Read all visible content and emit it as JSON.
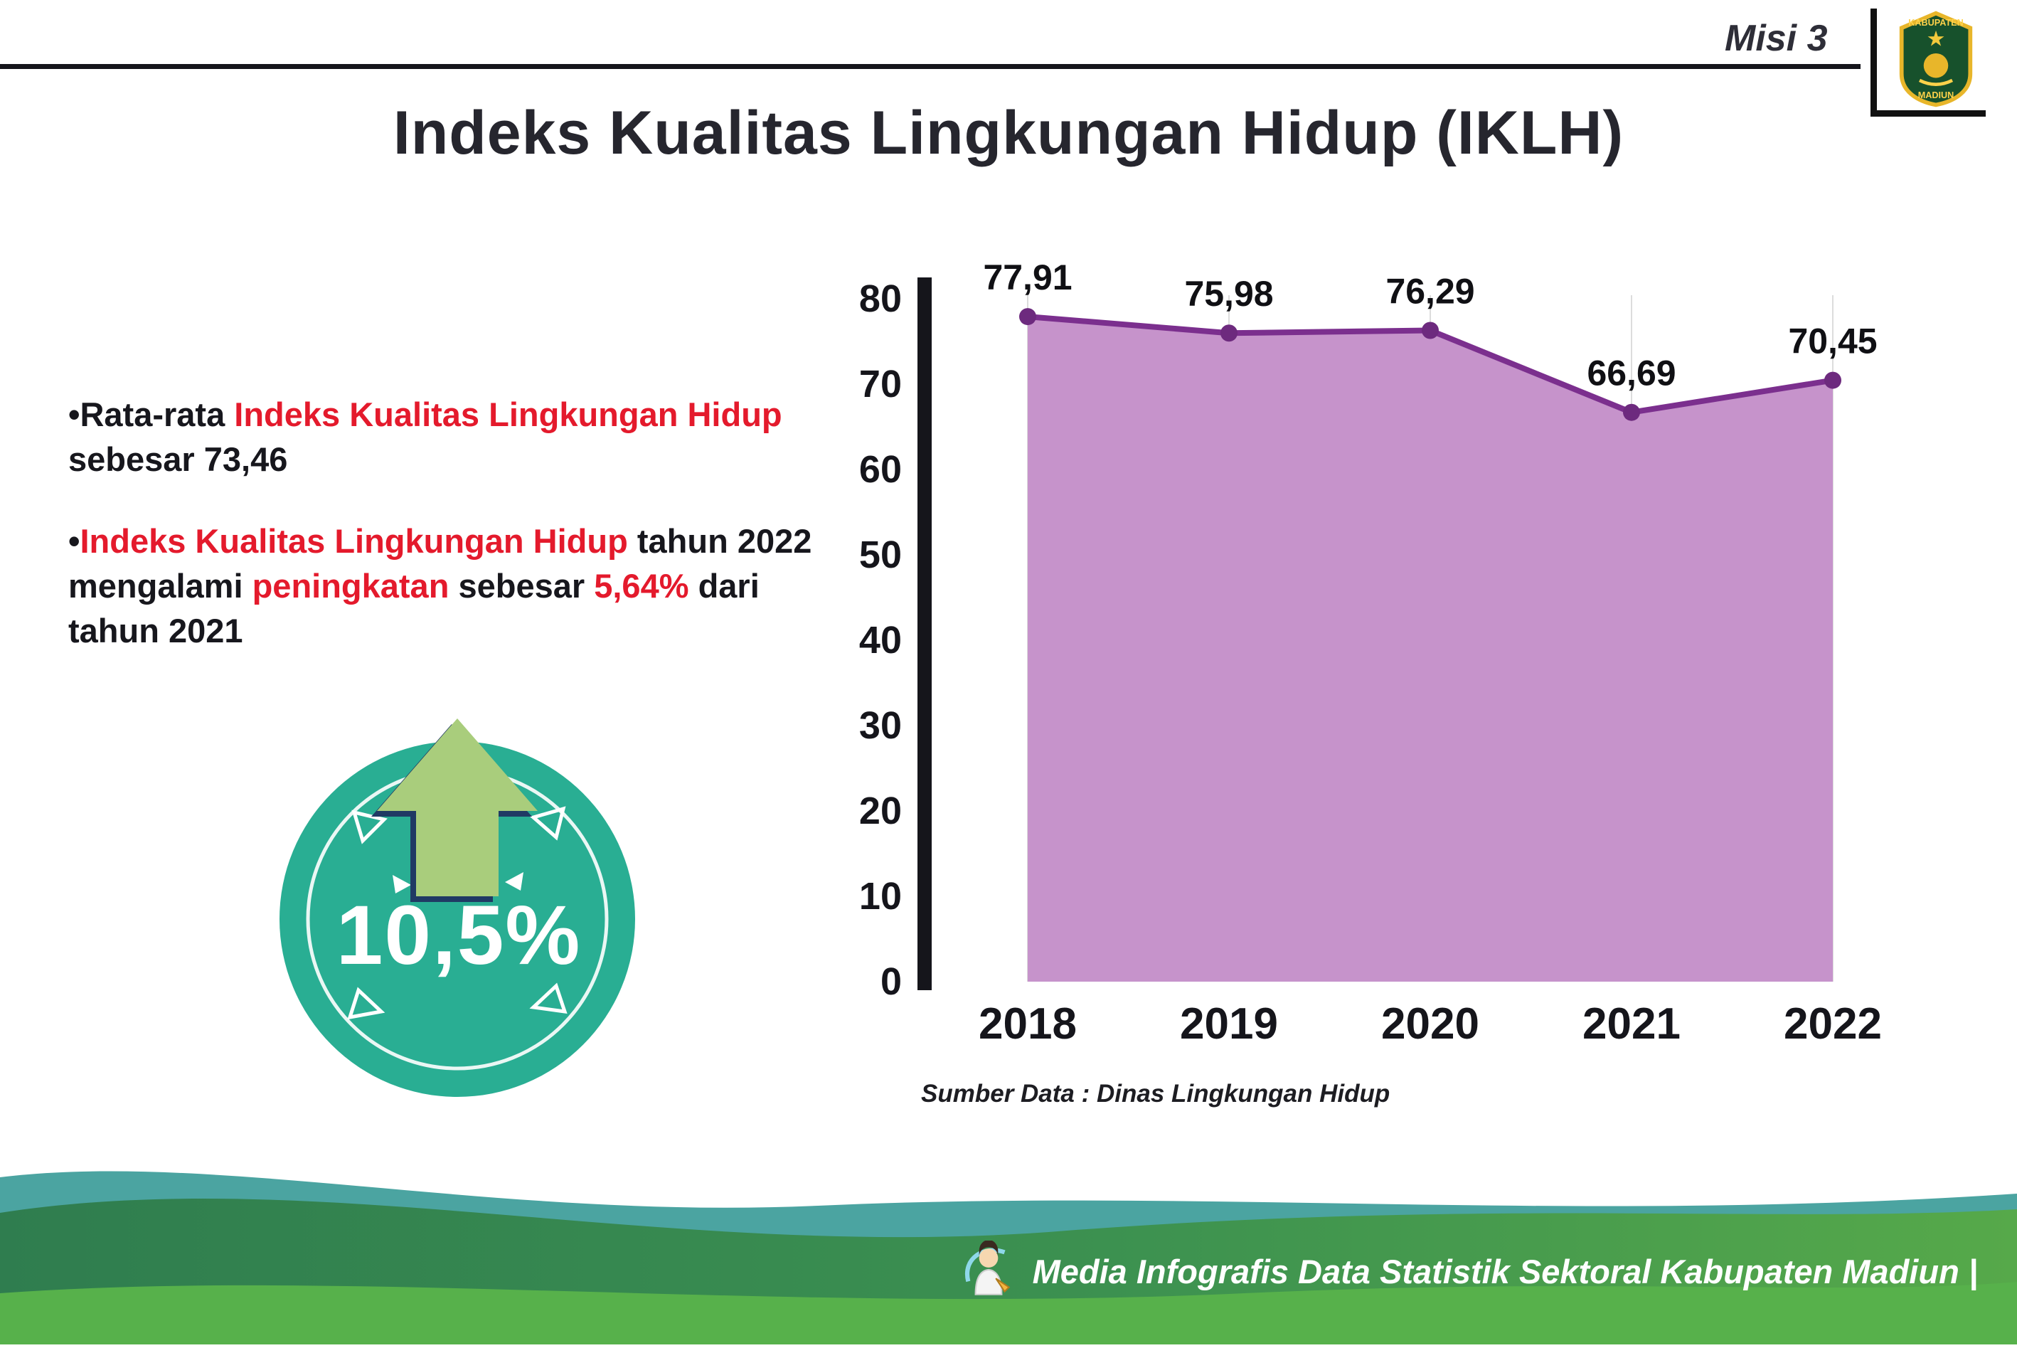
{
  "page": {
    "misi": "Misi 3",
    "title": "Indeks Kualitas Lingkungan Hidup (IKLH)",
    "bullet_char": "•"
  },
  "logo": {
    "name": "kabupaten-madiun-emblem",
    "top_text": "KABUPATEN",
    "bottom_text": "MADIUN"
  },
  "bullets": {
    "b1": {
      "s0": "Rata-rata ",
      "s1": "Indeks Kualitas Lingkungan Hidup",
      "s2": " sebesar 73,46"
    },
    "b2": {
      "s0": "Indeks Kualitas Lingkungan Hidup",
      "s1": " tahun 2022 mengalami ",
      "s2": "peningkatan",
      "s3": " sebesar ",
      "s4": "5,64%",
      "s5": " dari tahun 2021"
    }
  },
  "badge": {
    "value": "10,5%"
  },
  "chart_data": {
    "type": "area",
    "title": "",
    "categories": [
      "2018",
      "2019",
      "2020",
      "2021",
      "2022"
    ],
    "values": [
      77.91,
      75.98,
      76.29,
      66.69,
      70.45
    ],
    "value_labels": [
      "77,91",
      "75,98",
      "76,29",
      "66,69",
      "70,45"
    ],
    "ylim": [
      0,
      80
    ],
    "yticks": [
      0,
      10,
      20,
      30,
      40,
      50,
      60,
      70,
      80
    ],
    "grid": "vertical-light",
    "legend": "none",
    "source": "Sumber Data : Dinas Lingkungan Hidup",
    "fill_color": "#c693cb",
    "line_color": "#7b2f8e",
    "point_color": "#6d2a7e"
  },
  "footer": {
    "caption": "Media Infografis Data Statistik Sektoral Kabupaten Madiun |"
  },
  "colors": {
    "red_accent": "#e41a2c",
    "title_text": "#26262e",
    "circle_teal": "#29ae93",
    "arrow_green": "#a9cd7c",
    "arrow_shadow": "#203a64",
    "footer_dark_green": "#2f7d4f",
    "footer_light_green": "#56a94a",
    "footer_teal": "#4ba4a1",
    "footer_bottom_green": "#57b14b"
  }
}
